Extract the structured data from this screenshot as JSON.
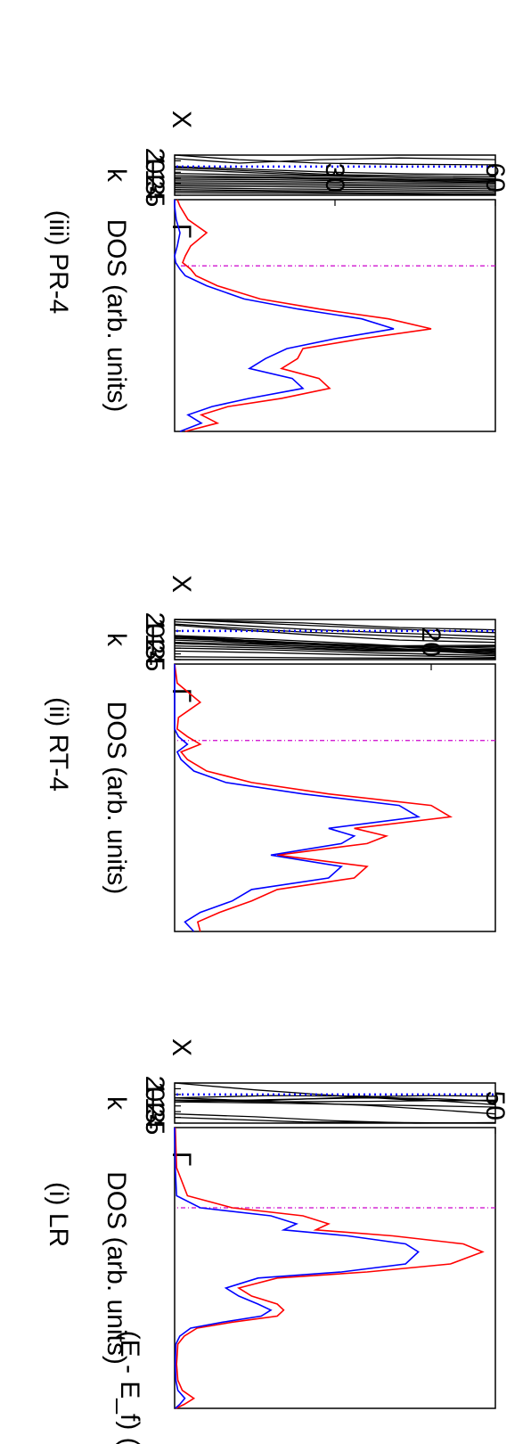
{
  "figure": {
    "ylabel": "(E - E_f) (eV)",
    "band_xlabel": "k",
    "band_ticks": [
      "Γ",
      "X"
    ],
    "dos_xlabel": "DOS (arb. units)",
    "fermi_level": 0,
    "colors": {
      "dos_total": "#ff0000",
      "dos_partial": "#0000ff",
      "fermi_line": "#cc00cc",
      "fermi_dots": "#0000ff",
      "bands": "#000000"
    }
  },
  "chart_data": [
    {
      "type": "line",
      "panel": "(i) LR",
      "ylabel": "(E - E_f) (eV)",
      "ylim": [
        -5,
        2
      ],
      "yticks": [
        "2",
        "1",
        "0",
        "-1",
        "-2",
        "-3",
        "-4",
        "-5"
      ],
      "band": {
        "xlabel": "k",
        "xticks": [
          "Γ",
          "X"
        ],
        "series": [
          {
            "x": [
              0,
              0.25,
              0.5,
              0.75,
              1
            ],
            "y": [
              2.0,
              0.8,
              -0.2,
              -1.0,
              -1.1
            ]
          },
          {
            "x": [
              0,
              0.3,
              0.6,
              0.8,
              1
            ],
            "y": [
              -0.6,
              -0.2,
              -0.3,
              -1.0,
              -1.8
            ]
          },
          {
            "x": [
              0,
              0.3,
              0.6,
              0.8,
              1
            ],
            "y": [
              -0.6,
              -1.2,
              -1.9,
              -2.6,
              -3.4
            ]
          },
          {
            "x": [
              0,
              0.25,
              0.5,
              0.75,
              1
            ],
            "y": [
              -3.4,
              -3.9,
              -4.6,
              -5.0,
              -4.9
            ]
          },
          {
            "x": [
              0,
              0.3,
              0.6,
              0.8,
              1
            ],
            "y": [
              -1.0,
              -1.0,
              -0.4,
              -0.2,
              -0.3
            ]
          },
          {
            "x": [
              0,
              0.3,
              0.6,
              0.8,
              1
            ],
            "y": [
              -1.0,
              -1.3,
              -1.2,
              -1.1,
              -1.0
            ]
          },
          {
            "x": [
              0,
              0.3,
              0.6,
              0.8,
              1
            ],
            "y": [
              -1.3,
              -1.5,
              -1.8,
              -2.0,
              -2.2
            ]
          },
          {
            "x": [
              0,
              0.3,
              0.6,
              0.8,
              1
            ],
            "y": [
              -1.3,
              -0.9,
              -0.6,
              -0.7,
              -1.2
            ]
          },
          {
            "x": [
              0,
              0.4,
              0.7,
              1
            ],
            "y": [
              -4.0,
              -4.8,
              -4.9,
              -5.0
            ]
          }
        ]
      },
      "dos": {
        "xlabel": "DOS (arb. units)",
        "xlim": [
          0,
          50
        ],
        "xticks": [
          50
        ],
        "y": [
          -5.0,
          -4.9,
          -4.75,
          -4.55,
          -4.3,
          -3.9,
          -3.4,
          -3.2,
          -3.0,
          -2.85,
          -2.7,
          -2.55,
          -2.4,
          -2.2,
          -2.0,
          -1.75,
          -1.6,
          -1.4,
          -1.1,
          -0.9,
          -0.7,
          -0.55,
          -0.4,
          -0.2,
          0.0,
          0.3,
          1.0,
          2.0
        ],
        "series": [
          {
            "name": "",
            "color": "#ff0000",
            "values": [
              0.2,
              1.5,
              3.0,
              1.2,
              0.5,
              0.3,
              0.5,
              1.5,
              3.5,
              9.0,
              16.0,
              17.0,
              16.0,
              12.0,
              10.0,
              16.0,
              30.0,
              43.0,
              48.0,
              45.0,
              34.0,
              22.0,
              24.0,
              20.0,
              9.0,
              2.0,
              0.3,
              0.1
            ]
          },
          {
            "name": "",
            "color": "#0000ff",
            "values": [
              0.1,
              0.8,
              1.6,
              0.5,
              0.2,
              0.1,
              0.2,
              0.8,
              2.5,
              7.5,
              13.5,
              15.0,
              13.0,
              10.0,
              8.0,
              13.0,
              26.0,
              36.0,
              38.0,
              36.0,
              27.0,
              17.0,
              19.0,
              15.0,
              4.0,
              0.3,
              0.1,
              0.0
            ]
          }
        ]
      }
    },
    {
      "type": "line",
      "panel": "(ii) RT-4",
      "ylabel": "",
      "ylim": [
        -5,
        2
      ],
      "yticks": [
        "2",
        "1",
        "0",
        "-1",
        "-2",
        "-3",
        "-4",
        "-5"
      ],
      "band": {
        "xlabel": "k",
        "xticks": [
          "Γ",
          "X"
        ],
        "series": [
          {
            "x": [
              0,
              0.4,
              0.7,
              1
            ],
            "y": [
              2.0,
              1.4,
              0.6,
              0.2
            ]
          },
          {
            "x": [
              0,
              0.4,
              0.7,
              1
            ],
            "y": [
              2.0,
              1.0,
              0.3,
              -0.3
            ]
          },
          {
            "x": [
              0,
              0.4,
              0.7,
              1
            ],
            "y": [
              1.6,
              0.3,
              -0.4,
              -1.0
            ]
          },
          {
            "x": [
              0,
              0.4,
              0.7,
              1
            ],
            "y": [
              1.2,
              -0.2,
              -0.9,
              -1.5
            ]
          },
          {
            "x": [
              0,
              0.4,
              0.7,
              1
            ],
            "y": [
              1.0,
              -0.6,
              -1.6,
              -2.0
            ]
          },
          {
            "x": [
              0,
              0.3,
              0.6,
              1
            ],
            "y": [
              -0.8,
              -1.5,
              -2.3,
              -3.5
            ]
          },
          {
            "x": [
              0,
              0.3,
              0.6,
              1
            ],
            "y": [
              -0.8,
              -1.9,
              -2.5,
              -3.7
            ]
          },
          {
            "x": [
              0,
              0.3,
              0.6,
              1
            ],
            "y": [
              -0.9,
              -2.1,
              -2.8,
              -3.9
            ]
          },
          {
            "x": [
              0,
              0.3,
              0.6,
              1
            ],
            "y": [
              -1.0,
              -2.4,
              -3.0,
              -4.1
            ]
          },
          {
            "x": [
              0,
              0.3,
              0.6,
              1
            ],
            "y": [
              -1.1,
              -1.8,
              -2.6,
              -2.5
            ]
          },
          {
            "x": [
              0,
              0.3,
              0.6,
              1
            ],
            "y": [
              -1.3,
              -2.0,
              -2.8,
              -2.7
            ]
          },
          {
            "x": [
              0,
              0.3,
              0.6,
              1
            ],
            "y": [
              -1.6,
              -2.2,
              -2.5,
              -3.0
            ]
          },
          {
            "x": [
              0,
              0.3,
              0.6,
              1
            ],
            "y": [
              -2.0,
              -2.4,
              -3.2,
              -3.2
            ]
          },
          {
            "x": [
              0,
              0.3,
              0.6,
              1
            ],
            "y": [
              -2.2,
              -2.7,
              -3.4,
              -3.3
            ]
          },
          {
            "x": [
              0,
              0.3,
              0.6,
              1
            ],
            "y": [
              -2.6,
              -3.0,
              -3.5,
              -3.6
            ]
          },
          {
            "x": [
              0,
              0.3,
              0.6,
              1
            ],
            "y": [
              -3.0,
              -3.3,
              -3.8,
              -4.3
            ]
          },
          {
            "x": [
              0,
              0.3,
              0.6,
              1
            ],
            "y": [
              -3.5,
              -3.8,
              -4.2,
              -4.6
            ]
          },
          {
            "x": [
              0,
              0.5,
              1
            ],
            "y": [
              -4.5,
              -4.7,
              -4.8
            ]
          }
        ]
      },
      "dos": {
        "xlabel": "DOS (arb. units)",
        "xlim": [
          0,
          25
        ],
        "xticks": [
          20
        ],
        "y": [
          -5.0,
          -4.75,
          -4.5,
          -4.2,
          -3.9,
          -3.6,
          -3.3,
          -3.0,
          -2.7,
          -2.5,
          -2.3,
          -2.0,
          -1.7,
          -1.4,
          -1.1,
          -0.8,
          -0.5,
          -0.3,
          -0.1,
          0.1,
          0.3,
          0.6,
          1.0,
          1.5,
          2.0
        ],
        "series": [
          {
            "name": "",
            "color": "#ff0000",
            "values": [
              2.0,
              1.8,
              3.5,
              6.0,
              8.0,
              14.0,
              15.0,
              8.0,
              15.0,
              16.5,
              14.0,
              21.5,
              20.0,
              12.0,
              6.0,
              2.5,
              1.0,
              0.5,
              2.0,
              1.0,
              0.2,
              0.3,
              2.0,
              0.2,
              0.0
            ]
          },
          {
            "name": "",
            "color": "#0000ff",
            "values": [
              1.5,
              0.8,
              2.0,
              4.5,
              6.0,
              12.0,
              13.0,
              7.5,
              13.0,
              14.0,
              12.0,
              19.0,
              17.5,
              10.0,
              4.0,
              1.5,
              0.5,
              0.2,
              1.0,
              0.3,
              0.0,
              0.0,
              0.0,
              0.0,
              0.0
            ]
          }
        ]
      }
    },
    {
      "type": "line",
      "panel": "(iii) PR-4",
      "ylabel": "",
      "ylim": [
        -5,
        2
      ],
      "yticks": [
        "2",
        "1",
        "0",
        "-1",
        "-2",
        "-3",
        "-4",
        "-5"
      ],
      "band": {
        "xlabel": "k",
        "xticks": [
          "Γ",
          "X"
        ],
        "series": [
          {
            "x": [
              0,
              0.2,
              0.45,
              0.7,
              1
            ],
            "y": [
              2.0,
              1.2,
              0.6,
              0.4,
              0.3
            ]
          },
          {
            "x": [
              0,
              0.2,
              0.45,
              0.7,
              1
            ],
            "y": [
              1.4,
              0.6,
              1.2,
              1.5,
              1.2
            ]
          },
          {
            "x": [
              0,
              0.25,
              0.5,
              0.75,
              1
            ],
            "y": [
              0.0,
              -0.5,
              -1.0,
              -1.3,
              -1.4
            ]
          },
          {
            "x": [
              0,
              0.25,
              0.5,
              0.75,
              1
            ],
            "y": [
              -0.2,
              -0.8,
              -1.4,
              -1.6,
              -1.8
            ]
          },
          {
            "x": [
              0,
              0.25,
              0.5,
              0.75,
              1
            ],
            "y": [
              -0.5,
              -1.1,
              -1.6,
              -1.9,
              -2.1
            ]
          },
          {
            "x": [
              0,
              0.3,
              0.6,
              1
            ],
            "y": [
              -1.2,
              -1.5,
              -1.8,
              -2.2
            ]
          },
          {
            "x": [
              0,
              0.3,
              0.6,
              1
            ],
            "y": [
              -1.6,
              -1.8,
              -2.1,
              -2.4
            ]
          },
          {
            "x": [
              0,
              0.3,
              0.6,
              1
            ],
            "y": [
              -1.9,
              -2.0,
              -2.3,
              -2.6
            ]
          },
          {
            "x": [
              0,
              0.3,
              0.6,
              1
            ],
            "y": [
              -2.2,
              -2.3,
              -2.5,
              -2.8
            ]
          },
          {
            "x": [
              0,
              0.3,
              0.6,
              1
            ],
            "y": [
              -2.5,
              -2.6,
              -2.8,
              -3.0
            ]
          },
          {
            "x": [
              0,
              0.3,
              0.6,
              1
            ],
            "y": [
              -2.8,
              -2.9,
              -3.1,
              -3.3
            ]
          },
          {
            "x": [
              0,
              0.3,
              0.6,
              1
            ],
            "y": [
              -3.1,
              -3.2,
              -3.4,
              -3.6
            ]
          },
          {
            "x": [
              0,
              0.3,
              0.6,
              1
            ],
            "y": [
              -3.4,
              -3.5,
              -3.7,
              -3.9
            ]
          },
          {
            "x": [
              0,
              0.3,
              0.6,
              1
            ],
            "y": [
              -3.7,
              -3.9,
              -4.0,
              -4.2
            ]
          },
          {
            "x": [
              0,
              0.3,
              0.6,
              1
            ],
            "y": [
              -4.0,
              -4.2,
              -4.3,
              -4.5
            ]
          },
          {
            "x": [
              0,
              0.3,
              0.6,
              1
            ],
            "y": [
              -4.3,
              -4.4,
              -4.6,
              -4.8
            ]
          },
          {
            "x": [
              0,
              0.5,
              1
            ],
            "y": [
              -4.6,
              -4.7,
              -4.9
            ]
          }
        ]
      },
      "dos": {
        "xlabel": "DOS (arb. units)",
        "xlim": [
          0,
          60
        ],
        "xticks": [
          30,
          60
        ],
        "y": [
          -5.0,
          -4.75,
          -4.5,
          -4.25,
          -4.0,
          -3.7,
          -3.4,
          -3.1,
          -2.8,
          -2.5,
          -2.2,
          -1.9,
          -1.6,
          -1.3,
          -1.0,
          -0.6,
          -0.3,
          -0.1,
          0.1,
          0.3,
          0.6,
          1.0,
          1.4,
          1.8,
          2.0
        ],
        "series": [
          {
            "name": "",
            "color": "#ff0000",
            "values": [
              2.0,
              8.0,
              5.0,
              10.0,
              20.0,
              29.0,
              27.0,
              20.0,
              23.0,
              24.0,
              35.0,
              48.0,
              40.0,
              27.0,
              16.0,
              8.0,
              4.0,
              3.0,
              1.5,
              2.0,
              3.0,
              6.0,
              2.5,
              1.0,
              0.5
            ]
          },
          {
            "name": "",
            "color": "#0000ff",
            "values": [
              1.0,
              5.0,
              2.5,
              7.0,
              14.0,
              24.0,
              22.0,
              14.0,
              17.0,
              21.0,
              30.0,
              41.0,
              35.0,
              23.0,
              13.0,
              6.0,
              2.0,
              1.0,
              0.2,
              0.0,
              0.5,
              1.0,
              0.3,
              0.0,
              0.0
            ]
          }
        ]
      }
    }
  ]
}
